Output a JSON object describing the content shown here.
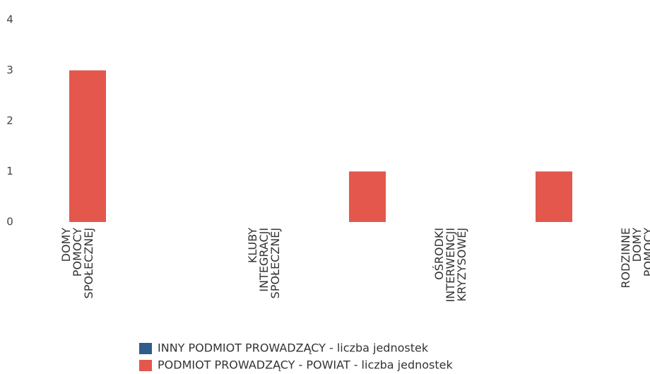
{
  "chart_data": {
    "type": "bar",
    "stacked": true,
    "categories": [
      "DOMY POMOCY SPOŁECZNEJ",
      null,
      "KLUBY INTEGRACJI SPOŁECZNEJ",
      null,
      "OŚRODKI INTERWENCJI KRYZYSOWEJ",
      null,
      "RODZINNE DOMY POMOCY"
    ],
    "series": [
      {
        "name": "INNY PODMIOT PROWADZĄCY - liczba jednostek",
        "color": "#2f5d8a",
        "values": [
          0,
          0,
          0,
          0,
          0,
          0,
          0
        ]
      },
      {
        "name": "PODMIOT PROWADZĄCY - POWIAT - liczba jednostek",
        "color": "#e3574c",
        "values": [
          3,
          0,
          0,
          1,
          0,
          1,
          0
        ]
      }
    ],
    "ylim": [
      0,
      4
    ],
    "yticks": [
      0,
      1,
      2,
      3,
      4
    ],
    "grid": false
  }
}
